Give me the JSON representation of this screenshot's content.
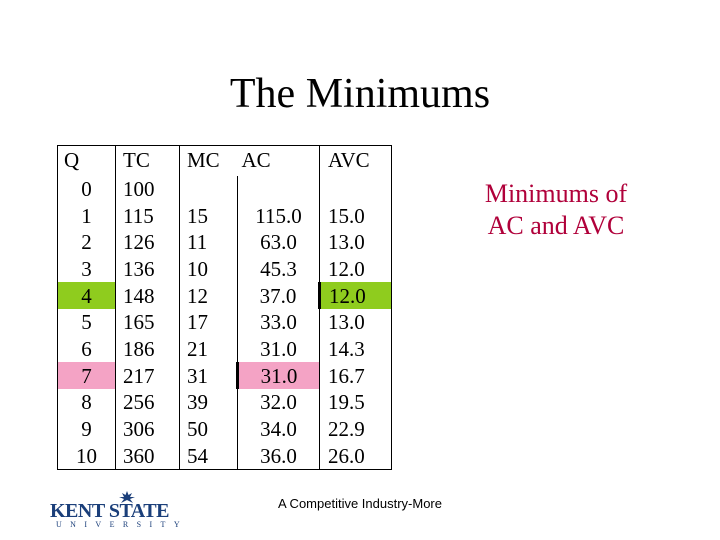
{
  "slide": {
    "title": "The Minimums",
    "note": "Minimums of AC and AVC",
    "footer": "A Competitive Industry-More"
  },
  "logo": {
    "name": "KENT STATE",
    "sub": "UNIVERSITY",
    "color": "#1b3f7a"
  },
  "colors": {
    "green_highlight": "#8fcc1e",
    "pink_highlight": "#f4a3c5",
    "note_text": "#b0003a"
  },
  "table": {
    "headers": [
      "Q",
      "TC",
      "MC",
      "AC",
      "AVC"
    ],
    "rows": [
      [
        "0",
        "100",
        "",
        "",
        ""
      ],
      [
        "1",
        "115",
        "15",
        "115.0",
        "15.0"
      ],
      [
        "2",
        "126",
        "11",
        "63.0",
        "13.0"
      ],
      [
        "3",
        "136",
        "10",
        "45.3",
        "12.0"
      ],
      [
        "4",
        "148",
        "12",
        "37.0",
        "12.0"
      ],
      [
        "5",
        "165",
        "17",
        "33.0",
        "13.0"
      ],
      [
        "6",
        "186",
        "21",
        "31.0",
        "14.3"
      ],
      [
        "7",
        "217",
        "31",
        "31.0",
        "16.7"
      ],
      [
        "8",
        "256",
        "39",
        "32.0",
        "19.5"
      ],
      [
        "9",
        "306",
        "50",
        "34.0",
        "22.9"
      ],
      [
        "10",
        "360",
        "54",
        "36.0",
        "26.0"
      ]
    ],
    "highlights": {
      "avc_minimum_row": 4,
      "ac_minimum_row": 7
    }
  }
}
